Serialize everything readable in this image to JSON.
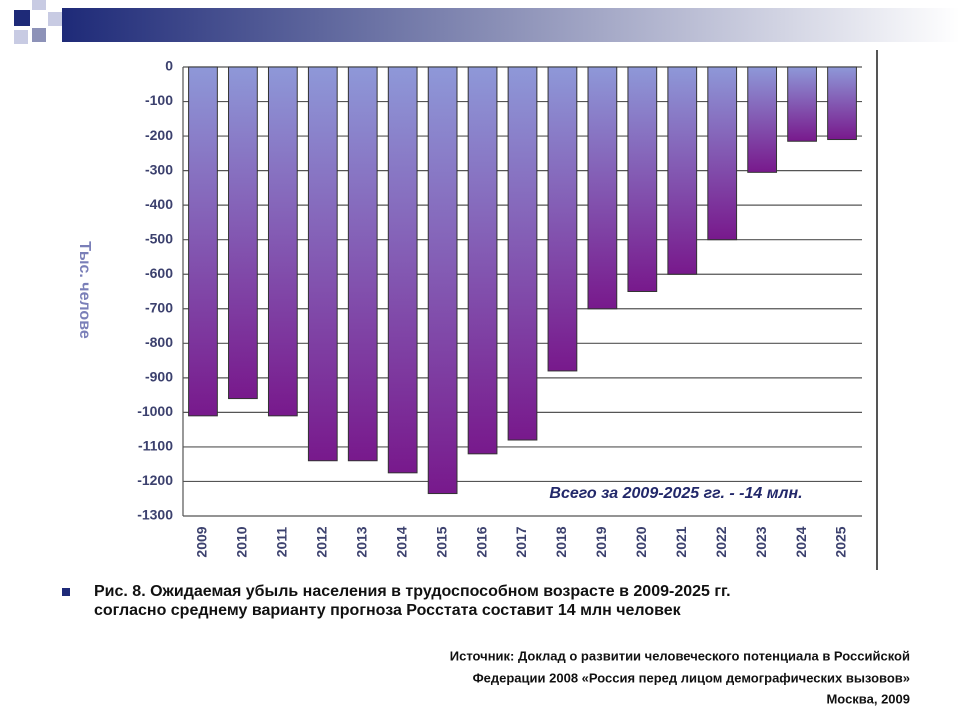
{
  "chart_data": {
    "type": "bar",
    "axis_label": "Тыс. челове",
    "annotation": "Всего за 2009-2025 гг. - -14 млн.",
    "categories": [
      "2009",
      "2010",
      "2011",
      "2012",
      "2013",
      "2014",
      "2015",
      "2016",
      "2017",
      "2018",
      "2019",
      "2020",
      "2021",
      "2022",
      "2023",
      "2024",
      "2025"
    ],
    "values": [
      -1010,
      -960,
      -1010,
      -1140,
      -1140,
      -1175,
      -1235,
      -1120,
      -1080,
      -880,
      -700,
      -650,
      -600,
      -500,
      -305,
      -215,
      -210
    ],
    "gradient": [
      "#8e98d8",
      "#78198c"
    ],
    "ylim": [
      -1300,
      0
    ],
    "yticks": [
      0,
      -100,
      -200,
      -300,
      -400,
      -500,
      -600,
      -700,
      -800,
      -900,
      -1000,
      -1100,
      -1200,
      -1300
    ],
    "grid": true
  },
  "slide": {
    "caption": [
      "Рис. 8.  Ожидаемая убыль населения в трудоспособном возрасте в 2009-2025 гг.",
      "согласно среднему варианту прогноза Росстата составит 14 млн человек"
    ],
    "source": [
      "Источник: Доклад о развитии человеческого потенциала  в Российской",
      "Федерации 2008 «Россия перед лицом демографических  вызовов»",
      "Москва, 2009"
    ]
  }
}
